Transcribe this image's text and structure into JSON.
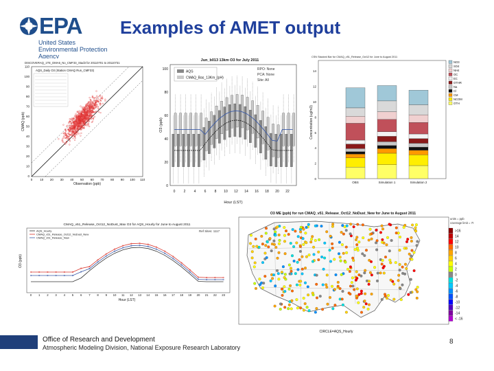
{
  "header": {
    "logo_word": "EPA",
    "agency_lines": [
      "United States",
      "Environmental Protection",
      "Agency"
    ],
    "title": "Examples of AMET output"
  },
  "panels": {
    "scatter": {
      "title": "DISCOVERAQ_1TE_DMA6_No_CMF33_Stad3 for 20110701 to 20110731",
      "legend": "AQS_Daily O3 (Station CMAQ Run_CMF33)",
      "xlabel": "Observation (ppb)",
      "ylabel": "CMAQ (ppb)",
      "xticks": [
        "0",
        "10",
        "20",
        "30",
        "40",
        "50",
        "60",
        "70",
        "80",
        "90",
        "100",
        "110"
      ],
      "yticks": [
        "0",
        "10",
        "20",
        "30",
        "40",
        "50",
        "60",
        "70",
        "80",
        "90",
        "100",
        "110"
      ]
    },
    "box": {
      "title": "Jun_b013 13km O3 for July 2011",
      "legend": [
        {
          "name": "AQS",
          "color": "#888888"
        },
        {
          "name": "CMAQ_Bas_13Km_(pH)",
          "color": "#3b5ba8"
        }
      ],
      "xlabel": "Hour (LST)",
      "ylabel": "O3 (ppb)",
      "xticks": [
        "0",
        "2",
        "4",
        "6",
        "8",
        "10",
        "12",
        "14",
        "16",
        "18",
        "20",
        "22"
      ],
      "yticks": [
        "0",
        "20",
        "40",
        "60",
        "80",
        "100"
      ]
    },
    "stacked": {
      "ylabel": "Concentration (ug/m3)",
      "categories": [
        "OBS",
        "Simulation 1",
        "Simulation 2"
      ],
      "legend": [
        "NO3",
        "SO4",
        "NH4",
        "OC",
        "EC",
        "OTHR",
        "Na",
        "Cl",
        "CM",
        "NCOM",
        "OTH"
      ],
      "colors": [
        "#a0c8d8",
        "#d9d9d9",
        "#f0d0d0",
        "#c0505a",
        "#f3f3f3",
        "#8a1a1a",
        "#c8c8c8",
        "#111111",
        "#ff9900",
        "#ffee00",
        "#ffff66"
      ],
      "yticks": [
        "0",
        "2",
        "4",
        "6",
        "8",
        "10",
        "12",
        "14"
      ]
    },
    "line": {
      "title": "CMAQ_v51_Release_Oct12_NoDust_Max O3 for AQS_Hourly for June to August 2011",
      "legend": [
        "AQS_Hourly",
        "CMAQ_v51_Release_Oct12_NoDust_New",
        "CMAQ_v51_Release_New"
      ],
      "legend_colors": [
        "#333333",
        "#d9342b",
        "#3b5ba8"
      ],
      "xlabel": "Hour (LST)",
      "ylabel": "O3 (ppb)",
      "xticks": [
        "0",
        "1",
        "2",
        "3",
        "4",
        "5",
        "6",
        "7",
        "8",
        "9",
        "10",
        "11",
        "12",
        "13",
        "14",
        "15",
        "16",
        "17",
        "18",
        "19",
        "20",
        "21",
        "22",
        "23"
      ]
    },
    "map": {
      "title": "O3 ME (ppb) for run CMAQ_v51_Release_Oct12_NoDust_New for June to August 2011",
      "units_note": "units = ppb\ncoverage limit = 75%",
      "caption": "CIRCLE=AQS_Hourly",
      "scale_labels": [
        ">16",
        "14",
        "12",
        "10",
        "8",
        "6",
        "4",
        "2",
        "0",
        "-2",
        "-4",
        "-6",
        "-8",
        "-10",
        "-12",
        "-14",
        "< -16"
      ],
      "scale_colors": [
        "#8b0000",
        "#c00000",
        "#ff0000",
        "#ff6a00",
        "#ffa500",
        "#ffd000",
        "#ffff00",
        "#c8ff00",
        "#888888",
        "#00e0e0",
        "#00c8ff",
        "#0090ff",
        "#0050ff",
        "#0000ff",
        "#5000c0",
        "#8000a0",
        "#b000d0"
      ]
    }
  },
  "footer": {
    "line1": "Office of Research and Development",
    "line2": "Atmospheric Modeling Division, National Exposure Research Laboratory",
    "page": "8"
  }
}
